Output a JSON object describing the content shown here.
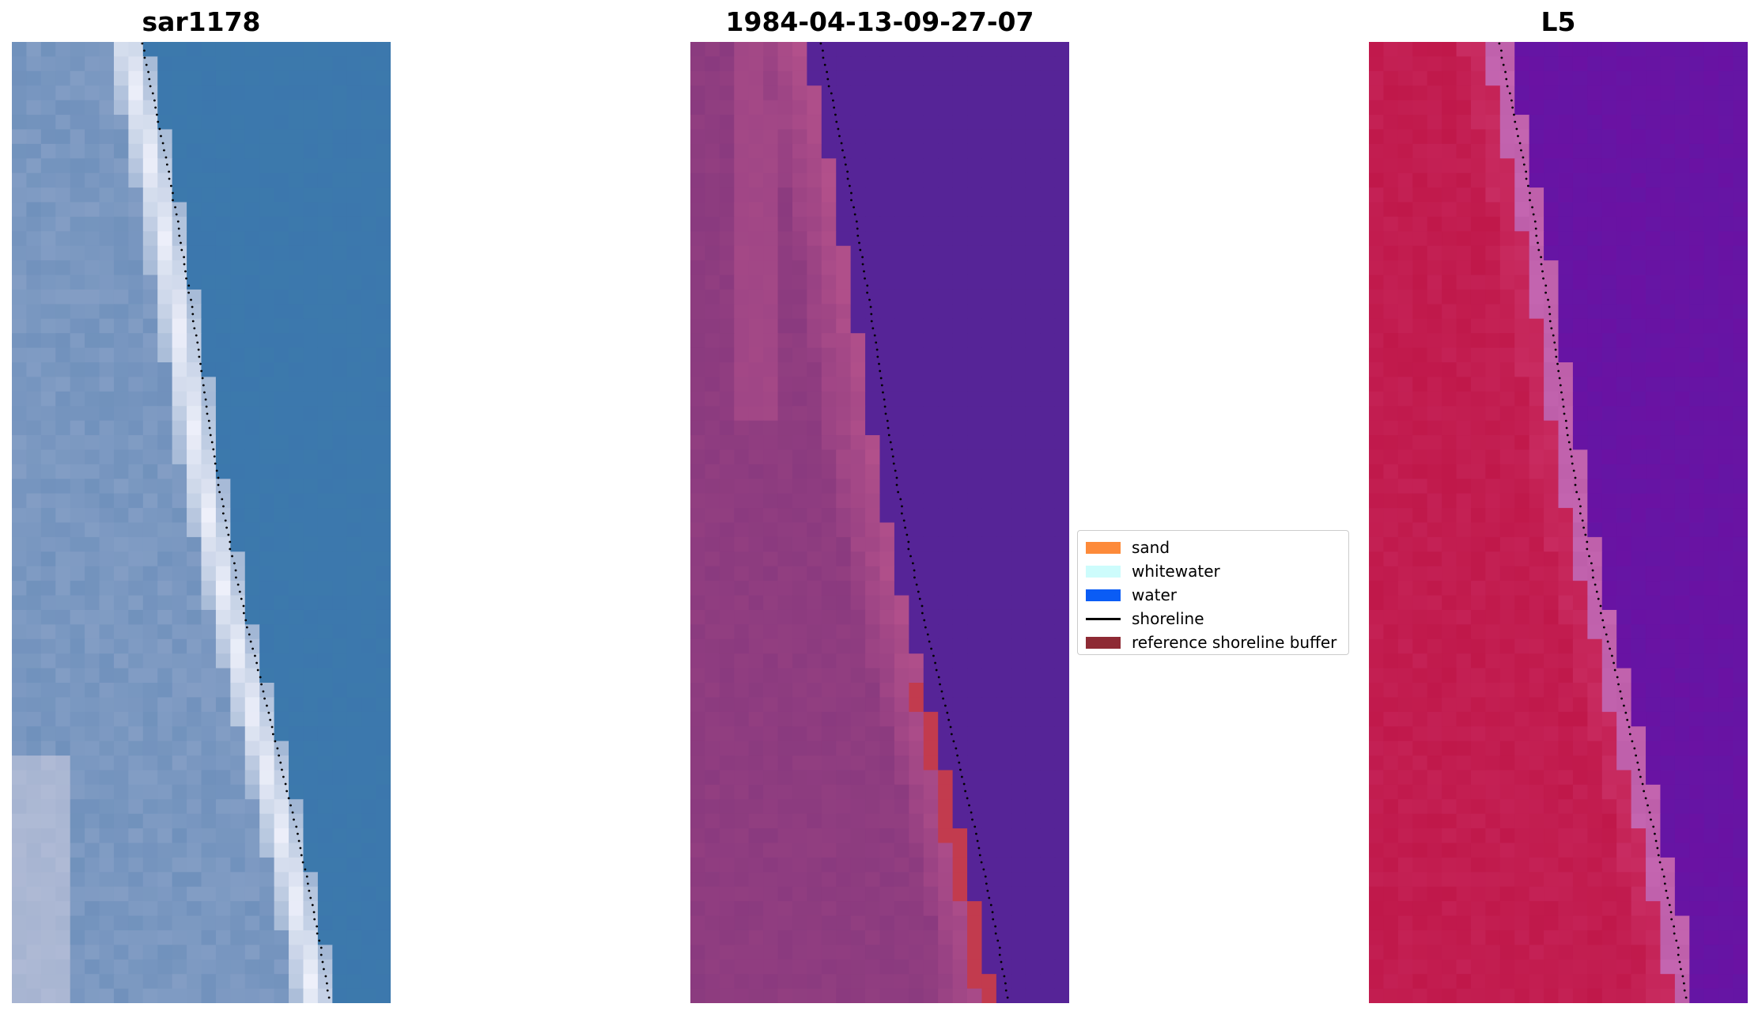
{
  "panels": [
    {
      "title": "sar1178",
      "kind": "rgb",
      "base": "#3c77ad"
    },
    {
      "title": "1984-04-13-09-27-07",
      "kind": "classified",
      "water": "#562497",
      "sand": "#8a3a7f",
      "buffer": "#c23b4e"
    },
    {
      "title": "L5",
      "kind": "index",
      "land": "#c0184a",
      "water": "#6a12a3"
    }
  ],
  "legend": {
    "items": [
      {
        "label": "sand",
        "color": "#fd8a3a",
        "type": "patch"
      },
      {
        "label": "whitewater",
        "color": "#cdfcfc",
        "type": "patch"
      },
      {
        "label": "water",
        "color": "#0a5cf5",
        "type": "patch"
      },
      {
        "label": "shoreline",
        "color": "#000000",
        "type": "line"
      },
      {
        "label": "reference shoreline buffer",
        "color": "#8e2a34",
        "type": "patch"
      }
    ]
  }
}
